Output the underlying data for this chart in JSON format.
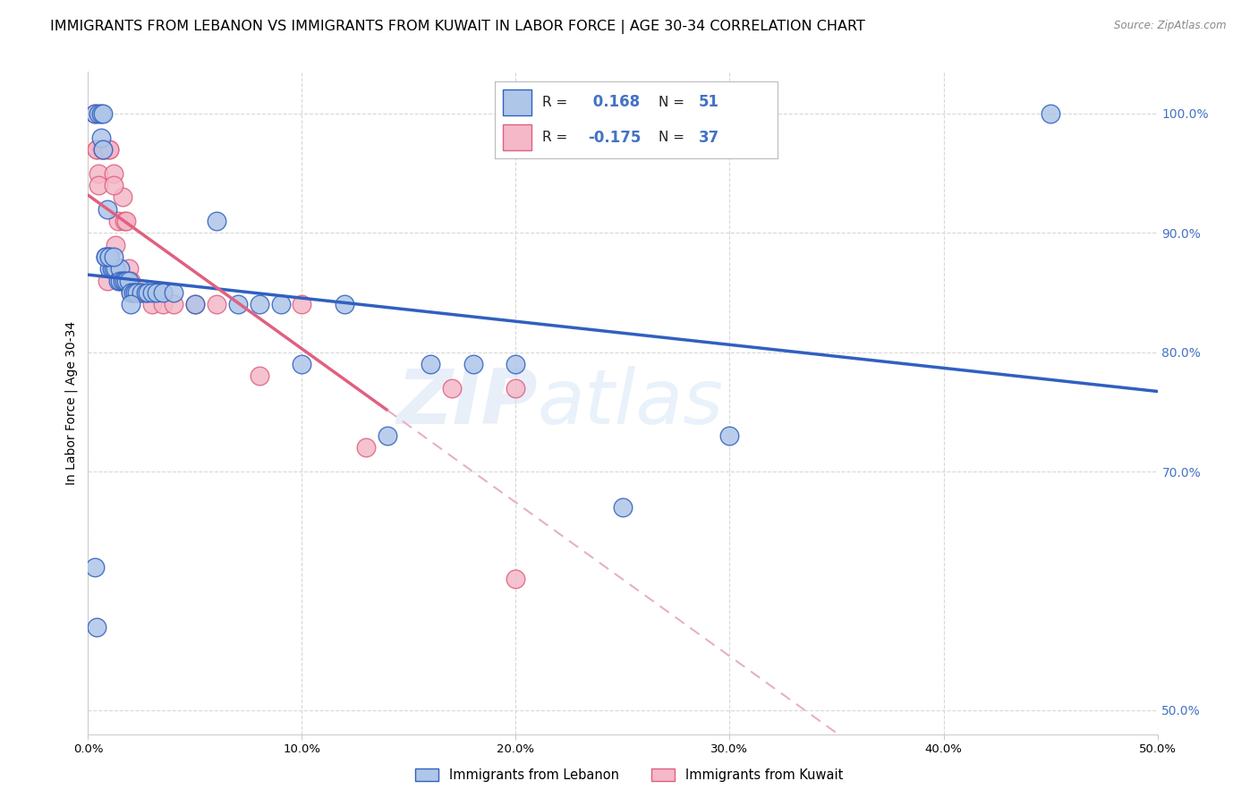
{
  "title": "IMMIGRANTS FROM LEBANON VS IMMIGRANTS FROM KUWAIT IN LABOR FORCE | AGE 30-34 CORRELATION CHART",
  "source": "Source: ZipAtlas.com",
  "ylabel": "In Labor Force | Age 30-34",
  "xlim": [
    0.0,
    0.5
  ],
  "ylim": [
    0.48,
    1.035
  ],
  "ytick_labels": [
    "100.0%",
    "90.0%",
    "80.0%",
    "70.0%",
    "50.0%"
  ],
  "ytick_values": [
    1.0,
    0.9,
    0.8,
    0.7,
    0.5
  ],
  "xtick_labels": [
    "0.0%",
    "10.0%",
    "20.0%",
    "30.0%",
    "40.0%",
    "50.0%"
  ],
  "xtick_values": [
    0.0,
    0.1,
    0.2,
    0.3,
    0.4,
    0.5
  ],
  "lebanon_R": 0.168,
  "lebanon_N": 51,
  "kuwait_R": -0.175,
  "kuwait_N": 37,
  "lebanon_color": "#aec6e8",
  "kuwait_color": "#f4b8c8",
  "lebanon_line_color": "#3060c0",
  "kuwait_line_color": "#e06080",
  "kuwait_dash_color": "#e8b0c0",
  "watermark_zip": "ZIP",
  "watermark_atlas": "atlas",
  "legend_label_1": "Immigrants from Lebanon",
  "legend_label_2": "Immigrants from Kuwait",
  "background_color": "#ffffff",
  "grid_color": "#d8d8d8",
  "right_axis_color": "#4472c4",
  "title_fontsize": 11.5,
  "axis_label_fontsize": 10,
  "tick_fontsize": 9.5,
  "lebanon_x": [
    0.003,
    0.005,
    0.006,
    0.006,
    0.007,
    0.007,
    0.008,
    0.009,
    0.01,
    0.01,
    0.011,
    0.012,
    0.013,
    0.014,
    0.015,
    0.015,
    0.016,
    0.017,
    0.018,
    0.019,
    0.02,
    0.021,
    0.022,
    0.023,
    0.025,
    0.027,
    0.028,
    0.03,
    0.032,
    0.035,
    0.04,
    0.05,
    0.06,
    0.07,
    0.08,
    0.09,
    0.1,
    0.12,
    0.14,
    0.16,
    0.18,
    0.2,
    0.25,
    0.3,
    0.003,
    0.004,
    0.008,
    0.01,
    0.012,
    0.02,
    0.45
  ],
  "lebanon_y": [
    1.0,
    1.0,
    1.0,
    0.98,
    1.0,
    0.97,
    0.88,
    0.92,
    0.88,
    0.87,
    0.87,
    0.87,
    0.87,
    0.86,
    0.87,
    0.86,
    0.86,
    0.86,
    0.86,
    0.86,
    0.85,
    0.85,
    0.85,
    0.85,
    0.85,
    0.85,
    0.85,
    0.85,
    0.85,
    0.85,
    0.85,
    0.84,
    0.91,
    0.84,
    0.84,
    0.84,
    0.79,
    0.84,
    0.73,
    0.79,
    0.79,
    0.79,
    0.67,
    0.73,
    0.62,
    0.57,
    0.88,
    0.88,
    0.88,
    0.84,
    1.0
  ],
  "kuwait_x": [
    0.003,
    0.004,
    0.005,
    0.006,
    0.007,
    0.008,
    0.009,
    0.01,
    0.011,
    0.012,
    0.013,
    0.014,
    0.015,
    0.016,
    0.017,
    0.018,
    0.019,
    0.02,
    0.022,
    0.025,
    0.03,
    0.035,
    0.04,
    0.05,
    0.06,
    0.08,
    0.1,
    0.13,
    0.17,
    0.2,
    0.004,
    0.005,
    0.007,
    0.01,
    0.012,
    0.02,
    0.2
  ],
  "kuwait_y": [
    1.0,
    0.97,
    0.95,
    0.97,
    0.97,
    0.97,
    0.86,
    0.97,
    0.87,
    0.95,
    0.89,
    0.91,
    0.87,
    0.93,
    0.91,
    0.91,
    0.87,
    0.86,
    0.85,
    0.85,
    0.84,
    0.84,
    0.84,
    0.84,
    0.84,
    0.78,
    0.84,
    0.72,
    0.77,
    0.77,
    0.97,
    0.94,
    0.97,
    0.97,
    0.94,
    0.85,
    0.61
  ]
}
